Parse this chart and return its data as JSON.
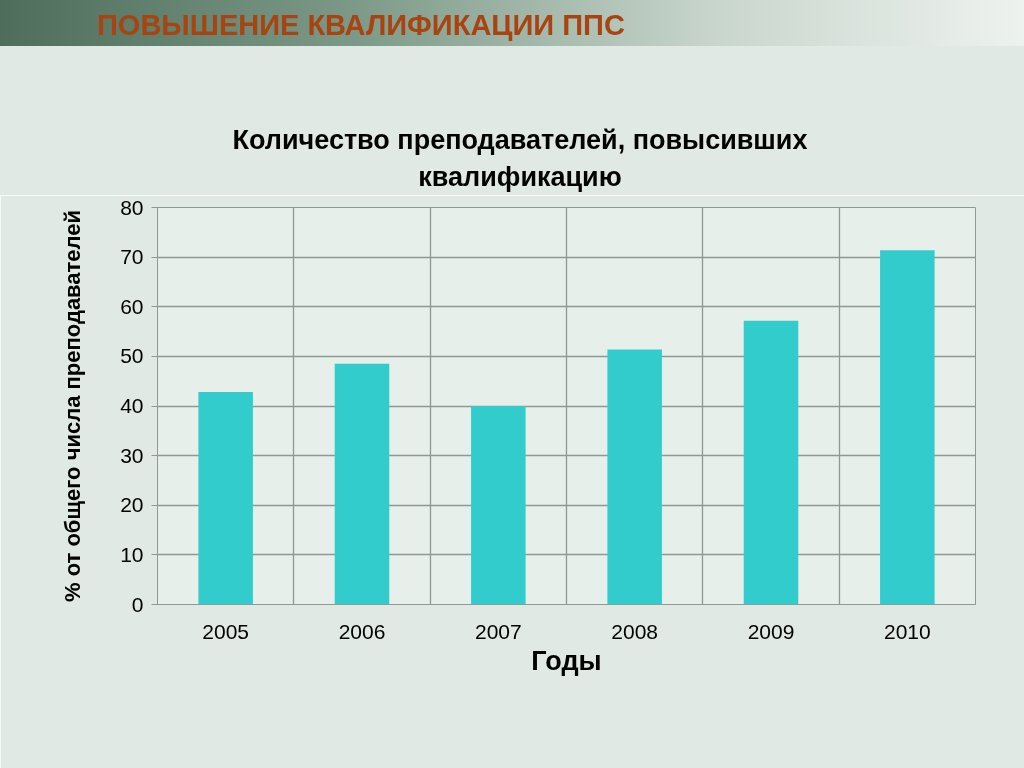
{
  "chart_data": {
    "type": "bar",
    "title": "ПОВЫШЕНИЕ КВАЛИФИКАЦИИ ППС",
    "subtitle": "Количество преподавателей, повысивших квалификацию",
    "xlabel": "Годы",
    "ylabel": "% от общего числа преподавателей",
    "categories": [
      "2005",
      "2006",
      "2007",
      "2008",
      "2009",
      "2010"
    ],
    "values": [
      42.8,
      48.5,
      40,
      51.4,
      57.2,
      71.4
    ],
    "color": "#33cccc",
    "ylim": [
      0,
      80
    ],
    "yticks": [
      0,
      10,
      20,
      30,
      40,
      50,
      60,
      70,
      80
    ],
    "grid": true
  }
}
